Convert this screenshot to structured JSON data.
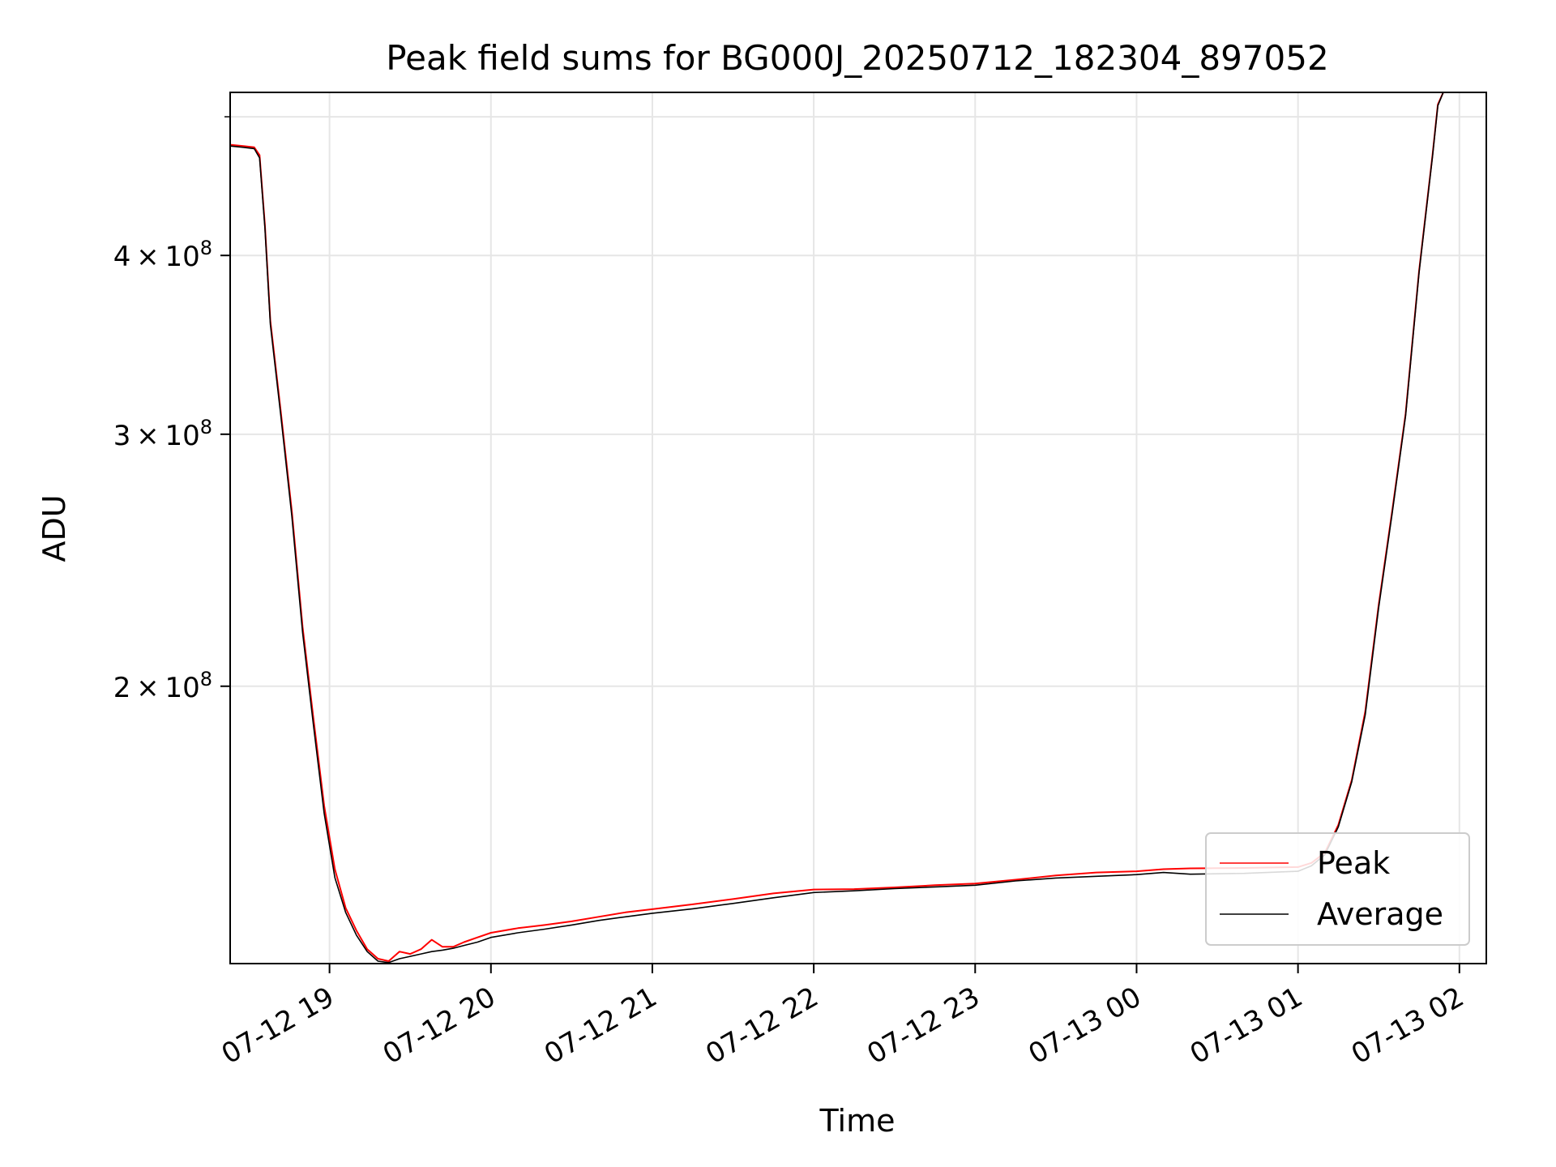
{
  "chart_data": {
    "type": "line",
    "title": "Peak field sums for BG000J_20250712_182304_897052",
    "xlabel": "Time",
    "ylabel": "ADU",
    "y_scale": "log",
    "ylim": [
      128000000,
      520000000
    ],
    "xlim": [
      "2025-07-12T18:23:04",
      "2025-07-13T02:10:00"
    ],
    "grid": true,
    "legend_position": "lower right",
    "x_ticks": [
      {
        "t": "2025-07-12T19:00:00",
        "label": "07-12 19"
      },
      {
        "t": "2025-07-12T20:00:00",
        "label": "07-12 20"
      },
      {
        "t": "2025-07-12T21:00:00",
        "label": "07-12 21"
      },
      {
        "t": "2025-07-12T22:00:00",
        "label": "07-12 22"
      },
      {
        "t": "2025-07-12T23:00:00",
        "label": "07-12 23"
      },
      {
        "t": "2025-07-13T00:00:00",
        "label": "07-13 00"
      },
      {
        "t": "2025-07-13T01:00:00",
        "label": "07-13 01"
      },
      {
        "t": "2025-07-13T02:00:00",
        "label": "07-13 02"
      }
    ],
    "y_ticks": [
      {
        "value": 200000000,
        "mantissa": "2",
        "exponent": "8"
      },
      {
        "value": 300000000,
        "mantissa": "3",
        "exponent": "8"
      },
      {
        "value": 400000000,
        "mantissa": "4",
        "exponent": "8"
      }
    ],
    "series": [
      {
        "name": "Peak",
        "color": "#ff0000",
        "points": [
          [
            "2025-07-12T18:23:04",
            478000000
          ],
          [
            "2025-07-12T18:28:00",
            477000000
          ],
          [
            "2025-07-12T18:32:00",
            476000000
          ],
          [
            "2025-07-12T18:34:00",
            470000000
          ],
          [
            "2025-07-12T18:36:00",
            420000000
          ],
          [
            "2025-07-12T18:38:00",
            360000000
          ],
          [
            "2025-07-12T18:42:00",
            310000000
          ],
          [
            "2025-07-12T18:46:00",
            265000000
          ],
          [
            "2025-07-12T18:50:00",
            220000000
          ],
          [
            "2025-07-12T18:54:00",
            190000000
          ],
          [
            "2025-07-12T18:58:00",
            165000000
          ],
          [
            "2025-07-12T19:02:00",
            149000000
          ],
          [
            "2025-07-12T19:06:00",
            140000000
          ],
          [
            "2025-07-12T19:10:00",
            135000000
          ],
          [
            "2025-07-12T19:14:00",
            131000000
          ],
          [
            "2025-07-12T19:18:00",
            129000000
          ],
          [
            "2025-07-12T19:22:00",
            128500000
          ],
          [
            "2025-07-12T19:26:00",
            130500000
          ],
          [
            "2025-07-12T19:30:00",
            130000000
          ],
          [
            "2025-07-12T19:34:00",
            131000000
          ],
          [
            "2025-07-12T19:38:00",
            133000000
          ],
          [
            "2025-07-12T19:42:00",
            131500000
          ],
          [
            "2025-07-12T19:46:00",
            131500000
          ],
          [
            "2025-07-12T19:50:00",
            132500000
          ],
          [
            "2025-07-12T19:55:00",
            133500000
          ],
          [
            "2025-07-12T20:00:00",
            134500000
          ],
          [
            "2025-07-12T20:10:00",
            135500000
          ],
          [
            "2025-07-12T20:20:00",
            136200000
          ],
          [
            "2025-07-12T20:30:00",
            137000000
          ],
          [
            "2025-07-12T20:40:00",
            138000000
          ],
          [
            "2025-07-12T20:50:00",
            139000000
          ],
          [
            "2025-07-12T21:00:00",
            139700000
          ],
          [
            "2025-07-12T21:15:00",
            140800000
          ],
          [
            "2025-07-12T21:30:00",
            142000000
          ],
          [
            "2025-07-12T21:45:00",
            143300000
          ],
          [
            "2025-07-12T22:00:00",
            144200000
          ],
          [
            "2025-07-12T22:15:00",
            144300000
          ],
          [
            "2025-07-12T22:30:00",
            144700000
          ],
          [
            "2025-07-12T22:45:00",
            145200000
          ],
          [
            "2025-07-12T23:00:00",
            145600000
          ],
          [
            "2025-07-12T23:15:00",
            146500000
          ],
          [
            "2025-07-12T23:30:00",
            147500000
          ],
          [
            "2025-07-12T23:45:00",
            148200000
          ],
          [
            "2025-07-13T00:00:00",
            148500000
          ],
          [
            "2025-07-13T00:10:00",
            149000000
          ],
          [
            "2025-07-13T00:20:00",
            149200000
          ],
          [
            "2025-07-13T00:40:00",
            149300000
          ],
          [
            "2025-07-13T01:00:00",
            149500000
          ],
          [
            "2025-07-13T01:05:00",
            150500000
          ],
          [
            "2025-07-13T01:10:00",
            153000000
          ],
          [
            "2025-07-13T01:15:00",
            160000000
          ],
          [
            "2025-07-13T01:20:00",
            172000000
          ],
          [
            "2025-07-13T01:25:00",
            192000000
          ],
          [
            "2025-07-13T01:30:00",
            228000000
          ],
          [
            "2025-07-13T01:35:00",
            265000000
          ],
          [
            "2025-07-13T01:40:00",
            310000000
          ],
          [
            "2025-07-13T01:45:00",
            390000000
          ],
          [
            "2025-07-13T01:50:00",
            470000000
          ],
          [
            "2025-07-13T01:52:00",
            510000000
          ],
          [
            "2025-07-13T01:54:00",
            520000000
          ]
        ]
      },
      {
        "name": "Average",
        "color": "#000000",
        "points": [
          [
            "2025-07-12T18:23:04",
            477000000
          ],
          [
            "2025-07-12T18:28:00",
            476000000
          ],
          [
            "2025-07-12T18:32:00",
            475000000
          ],
          [
            "2025-07-12T18:34:00",
            468000000
          ],
          [
            "2025-07-12T18:36:00",
            418000000
          ],
          [
            "2025-07-12T18:38:00",
            358000000
          ],
          [
            "2025-07-12T18:42:00",
            308000000
          ],
          [
            "2025-07-12T18:46:00",
            263000000
          ],
          [
            "2025-07-12T18:50:00",
            218000000
          ],
          [
            "2025-07-12T18:54:00",
            188000000
          ],
          [
            "2025-07-12T18:58:00",
            163000000
          ],
          [
            "2025-07-12T19:02:00",
            147000000
          ],
          [
            "2025-07-12T19:06:00",
            139000000
          ],
          [
            "2025-07-12T19:10:00",
            134000000
          ],
          [
            "2025-07-12T19:14:00",
            130500000
          ],
          [
            "2025-07-12T19:18:00",
            128500000
          ],
          [
            "2025-07-12T19:22:00",
            128200000
          ],
          [
            "2025-07-12T19:26:00",
            129000000
          ],
          [
            "2025-07-12T19:30:00",
            129500000
          ],
          [
            "2025-07-12T19:34:00",
            130000000
          ],
          [
            "2025-07-12T19:38:00",
            130500000
          ],
          [
            "2025-07-12T19:42:00",
            130800000
          ],
          [
            "2025-07-12T19:46:00",
            131200000
          ],
          [
            "2025-07-12T19:50:00",
            131800000
          ],
          [
            "2025-07-12T19:55:00",
            132500000
          ],
          [
            "2025-07-12T20:00:00",
            133500000
          ],
          [
            "2025-07-12T20:10:00",
            134500000
          ],
          [
            "2025-07-12T20:20:00",
            135300000
          ],
          [
            "2025-07-12T20:30:00",
            136200000
          ],
          [
            "2025-07-12T20:40:00",
            137200000
          ],
          [
            "2025-07-12T20:50:00",
            138000000
          ],
          [
            "2025-07-12T21:00:00",
            138800000
          ],
          [
            "2025-07-12T21:15:00",
            139800000
          ],
          [
            "2025-07-12T21:30:00",
            141000000
          ],
          [
            "2025-07-12T21:45:00",
            142300000
          ],
          [
            "2025-07-12T22:00:00",
            143500000
          ],
          [
            "2025-07-12T22:15:00",
            143900000
          ],
          [
            "2025-07-12T22:30:00",
            144400000
          ],
          [
            "2025-07-12T22:45:00",
            144800000
          ],
          [
            "2025-07-12T23:00:00",
            145200000
          ],
          [
            "2025-07-12T23:15:00",
            146200000
          ],
          [
            "2025-07-12T23:30:00",
            146900000
          ],
          [
            "2025-07-12T23:45:00",
            147300000
          ],
          [
            "2025-07-13T00:00:00",
            147700000
          ],
          [
            "2025-07-13T00:10:00",
            148200000
          ],
          [
            "2025-07-13T00:20:00",
            147800000
          ],
          [
            "2025-07-13T00:40:00",
            148000000
          ],
          [
            "2025-07-13T01:00:00",
            148500000
          ],
          [
            "2025-07-13T01:05:00",
            149800000
          ],
          [
            "2025-07-13T01:10:00",
            152500000
          ],
          [
            "2025-07-13T01:15:00",
            159500000
          ],
          [
            "2025-07-13T01:20:00",
            171500000
          ],
          [
            "2025-07-13T01:25:00",
            191000000
          ],
          [
            "2025-07-13T01:30:00",
            227000000
          ],
          [
            "2025-07-13T01:35:00",
            264000000
          ],
          [
            "2025-07-13T01:40:00",
            309000000
          ],
          [
            "2025-07-13T01:45:00",
            389000000
          ],
          [
            "2025-07-13T01:50:00",
            469000000
          ],
          [
            "2025-07-13T01:52:00",
            509000000
          ],
          [
            "2025-07-13T01:54:00",
            520000000
          ]
        ]
      }
    ]
  }
}
